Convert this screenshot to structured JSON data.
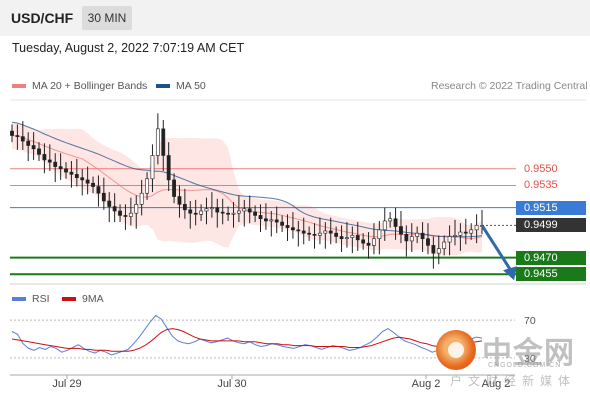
{
  "header": {
    "symbol": "USD/CHF",
    "timeframe": "30 MIN"
  },
  "timestamp": "Tuesday, August 2, 2022 7:07:19 AM CET",
  "legend": {
    "ma20_bb": "MA 20 + Bollinger Bands",
    "ma50": "MA 50",
    "copyright": "Research © 2022 Trading Central"
  },
  "rsi_legend": {
    "rsi": "RSI",
    "ma9": "9MA"
  },
  "colors": {
    "ma20": "#f08080",
    "ma50": "#1f4f8f",
    "bb_fill": "#fde3e0",
    "resistance": "#e05050",
    "pivot": "#3a7bd5",
    "support": "#1a7a1a",
    "last_price_bg": "#333333",
    "rsi": "#5b7fd6",
    "rsi_ma": "#cc1111",
    "arrow": "#2e6aa8"
  },
  "watermark": {
    "big": "中金网",
    "url": "CNGOLD.COM.CN",
    "sub": "户文财经新媒体"
  },
  "chart_data": [
    {
      "type": "candlestick",
      "title": "",
      "x_ticks": [
        "Jul 29",
        "Jul 30",
        "Aug 2",
        "Aug 2"
      ],
      "y_range": [
        0.9448,
        0.9612
      ],
      "levels": [
        {
          "label": "0.9550",
          "value": 0.955,
          "kind": "resistance"
        },
        {
          "label": "0.9535",
          "value": 0.9535,
          "kind": "resistance"
        },
        {
          "label": "0.9515",
          "value": 0.9515,
          "kind": "pivot"
        },
        {
          "label": "0.9499",
          "value": 0.9499,
          "kind": "last_price"
        },
        {
          "label": "0.9470",
          "value": 0.947,
          "kind": "support"
        },
        {
          "label": "0.9455",
          "value": 0.9455,
          "kind": "support"
        }
      ],
      "close_series": [
        0.958,
        0.9579,
        0.9575,
        0.9571,
        0.9568,
        0.9563,
        0.9558,
        0.9556,
        0.9552,
        0.955,
        0.9547,
        0.9545,
        0.9542,
        0.954,
        0.9537,
        0.9534,
        0.9528,
        0.9521,
        0.9516,
        0.9512,
        0.9508,
        0.9507,
        0.951,
        0.9518,
        0.9528,
        0.9541,
        0.9562,
        0.9586,
        0.9562,
        0.954,
        0.9525,
        0.9518,
        0.9513,
        0.951,
        0.9509,
        0.9512,
        0.9514,
        0.9515,
        0.9511,
        0.951,
        0.9509,
        0.951,
        0.9512,
        0.9514,
        0.9511,
        0.9508,
        0.9505,
        0.9503,
        0.9504,
        0.9502,
        0.9499,
        0.9497,
        0.9495,
        0.9494,
        0.9492,
        0.9491,
        0.949,
        0.9492,
        0.9494,
        0.9492,
        0.9489,
        0.9487,
        0.9488,
        0.949,
        0.9486,
        0.9483,
        0.9481,
        0.9487,
        0.9495,
        0.9503,
        0.9505,
        0.9498,
        0.9491,
        0.9485,
        0.9489,
        0.9492,
        0.9487,
        0.9481,
        0.9474,
        0.9478,
        0.9484,
        0.9489,
        0.949,
        0.9493,
        0.9492,
        0.9495,
        0.9499,
        0.9499
      ],
      "forecast": {
        "from": 0.9499,
        "to": 0.9455,
        "direction": "down"
      }
    },
    {
      "type": "line",
      "title": "",
      "y_ticks": [
        "70",
        "30"
      ],
      "y_range": [
        15,
        85
      ],
      "series": [
        {
          "name": "RSI",
          "values": [
            58,
            55,
            45,
            40,
            38,
            41,
            39,
            42,
            40,
            36,
            38,
            41,
            44,
            40,
            37,
            35,
            38,
            36,
            33,
            35,
            37,
            39,
            45,
            52,
            60,
            68,
            75,
            71,
            62,
            53,
            48,
            46,
            45,
            47,
            50,
            48,
            46,
            47,
            49,
            51,
            48,
            46,
            45,
            47,
            44,
            42,
            43,
            45,
            44,
            42,
            41,
            40,
            42,
            44,
            43,
            41,
            39,
            41,
            43,
            42,
            40,
            38,
            39,
            41,
            44,
            47,
            52,
            58,
            61,
            57,
            52,
            48,
            46,
            44,
            41,
            39,
            36,
            38,
            42,
            46,
            48,
            50,
            49,
            50,
            52,
            51
          ]
        },
        {
          "name": "9MA",
          "values": [
            50,
            49,
            48,
            47,
            46,
            45,
            44,
            43,
            42,
            41,
            40,
            40,
            40,
            39,
            39,
            38,
            38,
            38,
            37,
            37,
            37,
            37,
            38,
            40,
            43,
            47,
            52,
            57,
            60,
            61,
            60,
            58,
            55,
            52,
            50,
            49,
            48,
            48,
            48,
            48,
            48,
            48,
            47,
            47,
            47,
            46,
            45,
            45,
            45,
            44,
            44,
            43,
            43,
            43,
            43,
            42,
            42,
            42,
            42,
            42,
            42,
            41,
            41,
            41,
            42,
            43,
            45,
            47,
            49,
            51,
            52,
            51,
            50,
            48,
            46,
            45,
            43,
            42,
            42,
            42,
            43,
            44,
            45,
            46,
            47,
            48
          ]
        }
      ]
    }
  ]
}
